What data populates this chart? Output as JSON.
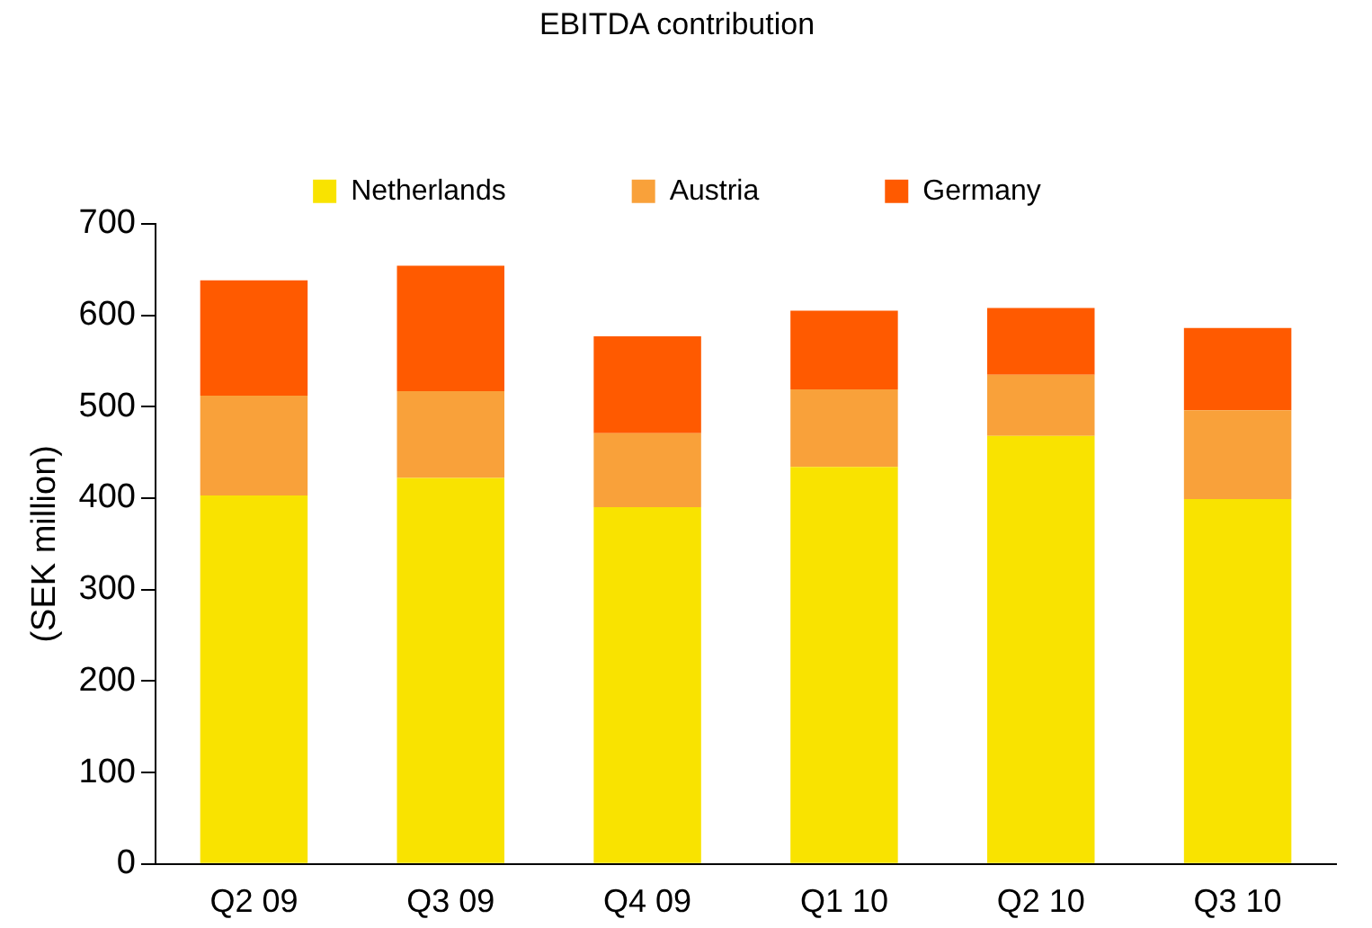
{
  "chart_data": {
    "type": "bar",
    "title": "EBITDA contribution",
    "ylabel": "(SEK million)",
    "stacked": true,
    "legend": "top",
    "grid": false,
    "categories": [
      "Q2 09",
      "Q3 09",
      "Q4 09",
      "Q1 10",
      "Q2 10",
      "Q3 10"
    ],
    "series": [
      {
        "name": "Netherlands",
        "color": "#f9e300",
        "values": [
          403,
          422,
          390,
          434,
          468,
          399
        ]
      },
      {
        "name": "Austria",
        "color": "#f9a13a",
        "values": [
          109,
          95,
          81,
          85,
          67,
          97
        ]
      },
      {
        "name": "Germany",
        "color": "#ff5a00",
        "values": [
          126,
          137,
          106,
          86,
          73,
          90
        ]
      }
    ],
    "ylim": [
      0,
      700
    ],
    "yticks": [
      0,
      100,
      200,
      300,
      400,
      500,
      600,
      700
    ]
  }
}
